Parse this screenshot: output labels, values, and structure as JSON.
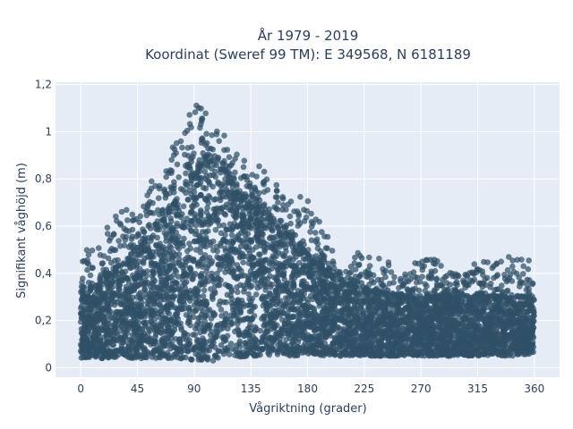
{
  "chart_data": {
    "type": "scatter",
    "title_line1": "År 1979 - 2019",
    "title_line2": "Koordinat (Sweref 99 TM): E 349568, N 6181189",
    "xlabel": "Vågriktning (grader)",
    "ylabel": "Signifikant våghöjd (m)",
    "xlim": [
      -20,
      380
    ],
    "ylim": [
      -0.04,
      1.21
    ],
    "x_ticks": [
      0,
      45,
      90,
      135,
      180,
      225,
      270,
      315,
      360
    ],
    "x_tick_labels": [
      "0",
      "45",
      "90",
      "135",
      "180",
      "225",
      "270",
      "315",
      "360"
    ],
    "y_ticks": [
      0,
      0.2,
      0.4,
      0.6,
      0.8,
      1.0,
      1.2
    ],
    "y_tick_labels": [
      "0",
      "0,2",
      "0,4",
      "0,6",
      "0,8",
      "1",
      "1,2"
    ],
    "grid": true,
    "marker_color": "#2f5166",
    "plot_background": "#e5ecf6",
    "series": [
      {
        "x": [
          0,
          15,
          30,
          45,
          60,
          75,
          90,
          100,
          110,
          120,
          135,
          150,
          165,
          180,
          195,
          210,
          225,
          240,
          255,
          270,
          285,
          300,
          315,
          330,
          345,
          360
        ],
        "y_min": [
          0.04,
          0.04,
          0.04,
          0.04,
          0.04,
          0.04,
          0.03,
          0.03,
          0.03,
          0.04,
          0.05,
          0.05,
          0.05,
          0.05,
          0.05,
          0.05,
          0.05,
          0.05,
          0.05,
          0.05,
          0.05,
          0.05,
          0.05,
          0.05,
          0.05,
          0.06
        ],
        "y_max_dense": [
          0.3,
          0.36,
          0.42,
          0.5,
          0.58,
          0.7,
          0.82,
          0.88,
          0.85,
          0.76,
          0.68,
          0.62,
          0.56,
          0.47,
          0.4,
          0.36,
          0.33,
          0.31,
          0.3,
          0.3,
          0.3,
          0.3,
          0.3,
          0.3,
          0.3,
          0.3
        ],
        "y_max_outlier": [
          0.48,
          0.55,
          0.69,
          0.67,
          0.83,
          0.96,
          1.16,
          1.12,
          1.04,
          0.9,
          0.92,
          0.82,
          0.73,
          0.73,
          0.57,
          0.48,
          0.49,
          0.46,
          0.42,
          0.46,
          0.46,
          0.41,
          0.45,
          0.47,
          0.5,
          0.44
        ]
      }
    ]
  }
}
